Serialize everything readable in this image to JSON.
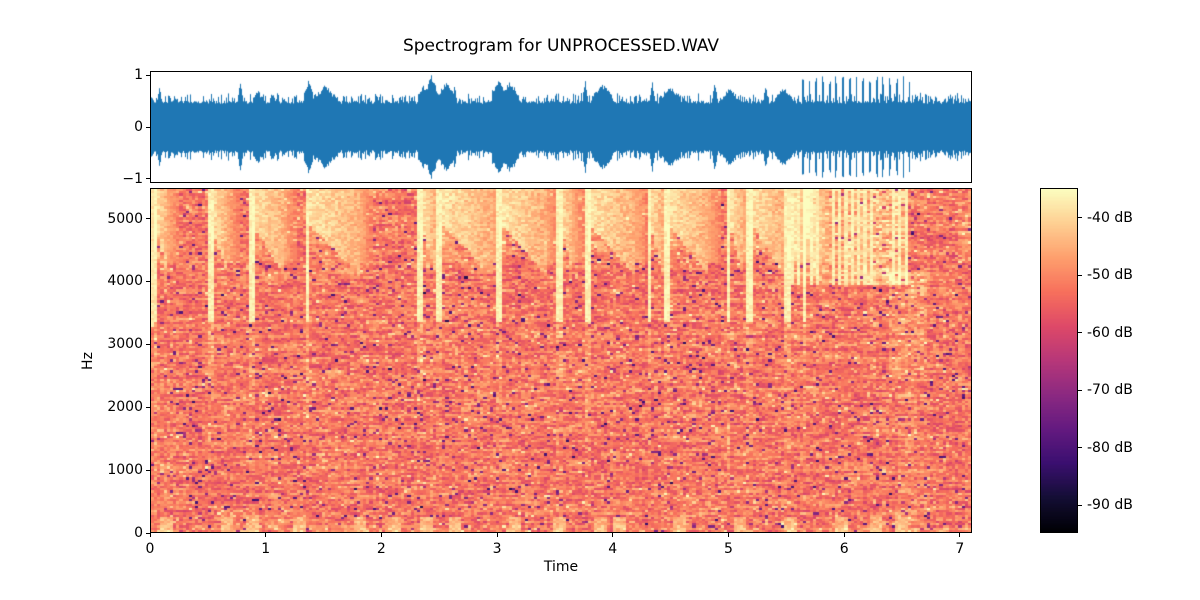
{
  "figure": {
    "title": "Spectrogram for UNPROCESSED.WAV",
    "background_color": "#ffffff"
  },
  "waveform_plot": {
    "y_tick_labels": [
      "1",
      "0",
      "−1"
    ],
    "y_tick_values": [
      1,
      0,
      -1
    ],
    "ylim": [
      -1.077,
      1.077
    ],
    "line_color": "#1f77b4"
  },
  "spectrogram_plot": {
    "xlabel": "Time",
    "ylabel": "Hz",
    "x_tick_labels": [
      "0",
      "1",
      "2",
      "3",
      "4",
      "5",
      "6",
      "7"
    ],
    "x_tick_values": [
      0,
      1,
      2,
      3,
      4,
      5,
      6,
      7
    ],
    "y_tick_labels": [
      "0",
      "1000",
      "2000",
      "3000",
      "4000",
      "5000"
    ],
    "y_tick_values": [
      0,
      1000,
      2000,
      3000,
      4000,
      5000
    ],
    "xlim": [
      0,
      7.105
    ],
    "ylim": [
      0,
      5485
    ]
  },
  "colorbar": {
    "tick_labels": [
      "-40 dB",
      "-50 dB",
      "-60 dB",
      "-70 dB",
      "-80 dB",
      "-90 dB"
    ],
    "tick_values": [
      -40,
      -50,
      -60,
      -70,
      -80,
      -90
    ],
    "vmax": -34.8,
    "vmin": -94.8,
    "colormap": "magma",
    "colormap_stops": [
      [
        0.0,
        "#000004"
      ],
      [
        0.1,
        "#140e36"
      ],
      [
        0.2,
        "#3b0f70"
      ],
      [
        0.3,
        "#641a80"
      ],
      [
        0.4,
        "#8c2981"
      ],
      [
        0.5,
        "#b73779"
      ],
      [
        0.6,
        "#de4968"
      ],
      [
        0.7,
        "#f7705c"
      ],
      [
        0.8,
        "#fe9f6d"
      ],
      [
        0.9,
        "#fecf92"
      ],
      [
        1.0,
        "#fcfdbf"
      ]
    ]
  },
  "chart_data": [
    {
      "type": "line",
      "name": "waveform",
      "title": "",
      "color": "#1f77b4",
      "duration_seconds": 7.1,
      "dense_band_amplitude": 0.5,
      "ylim": [
        -1.077,
        1.077
      ],
      "onsets": [
        [
          0.07,
          0.78,
          0.03
        ],
        [
          0.2,
          0.6,
          0.02
        ],
        [
          0.45,
          0.63,
          0.02
        ],
        [
          0.77,
          0.88,
          0.03
        ],
        [
          0.92,
          0.72,
          0.045
        ],
        [
          1.36,
          0.88,
          0.04
        ],
        [
          1.5,
          0.78,
          0.1
        ],
        [
          2.15,
          0.62,
          0.03
        ],
        [
          2.35,
          0.8,
          0.05
        ],
        [
          2.42,
          0.97,
          0.05
        ],
        [
          2.55,
          0.85,
          0.08
        ],
        [
          2.62,
          0.8,
          0.03
        ],
        [
          3.0,
          0.9,
          0.06
        ],
        [
          3.1,
          0.85,
          0.08
        ],
        [
          3.5,
          0.66,
          0.02
        ],
        [
          3.75,
          0.9,
          0.03
        ],
        [
          3.9,
          0.8,
          0.09
        ],
        [
          4.33,
          0.86,
          0.03
        ],
        [
          4.48,
          0.76,
          0.09
        ],
        [
          4.87,
          0.86,
          0.03
        ],
        [
          5.0,
          0.72,
          0.09
        ],
        [
          5.31,
          0.82,
          0.03
        ],
        [
          5.47,
          0.75,
          0.08
        ],
        [
          6.62,
          0.6,
          0.03
        ],
        [
          6.75,
          0.55,
          0.02
        ]
      ],
      "spike_train": {
        "start": 5.63,
        "end": 6.56,
        "interval": 0.058,
        "amp": 0.92
      }
    },
    {
      "type": "heatmap",
      "name": "spectrogram",
      "x_range_seconds": [
        0,
        7.105
      ],
      "freq_range_hz": [
        0,
        5485
      ],
      "value_range_db": [
        -94.8,
        -34.8
      ],
      "noise_floor_db": {
        "mean": -52,
        "spread": 6
      },
      "high_band_bursts": [
        [
          0.04,
          0.1
        ],
        [
          0.52,
          0.14
        ],
        [
          0.87,
          0.28
        ],
        [
          1.36,
          0.45
        ],
        [
          2.34,
          0.13
        ],
        [
          2.5,
          0.46
        ],
        [
          3.02,
          0.4
        ],
        [
          3.54,
          0.12
        ],
        [
          3.78,
          0.42
        ],
        [
          4.32,
          0.12
        ],
        [
          4.47,
          0.36
        ],
        [
          5.01,
          0.12
        ],
        [
          5.19,
          0.3
        ],
        [
          5.51,
          0.1
        ],
        [
          5.67,
          0.08
        ]
      ],
      "hat_roll": {
        "start": 5.55,
        "end": 6.57,
        "interval": 0.058,
        "band_hz": [
          3950,
          5485
        ]
      },
      "kick_times": [
        0.13,
        0.65,
        0.87,
        1.3,
        1.82,
        2.12,
        2.38,
        2.64,
        3.16,
        3.55,
        3.9,
        4.07,
        4.59,
        5.11,
        5.55,
        5.98,
        6.28,
        6.5
      ],
      "mid_wash": {
        "t": [
          6.38,
          6.72
        ],
        "f": [
          2600,
          4150
        ]
      }
    }
  ]
}
